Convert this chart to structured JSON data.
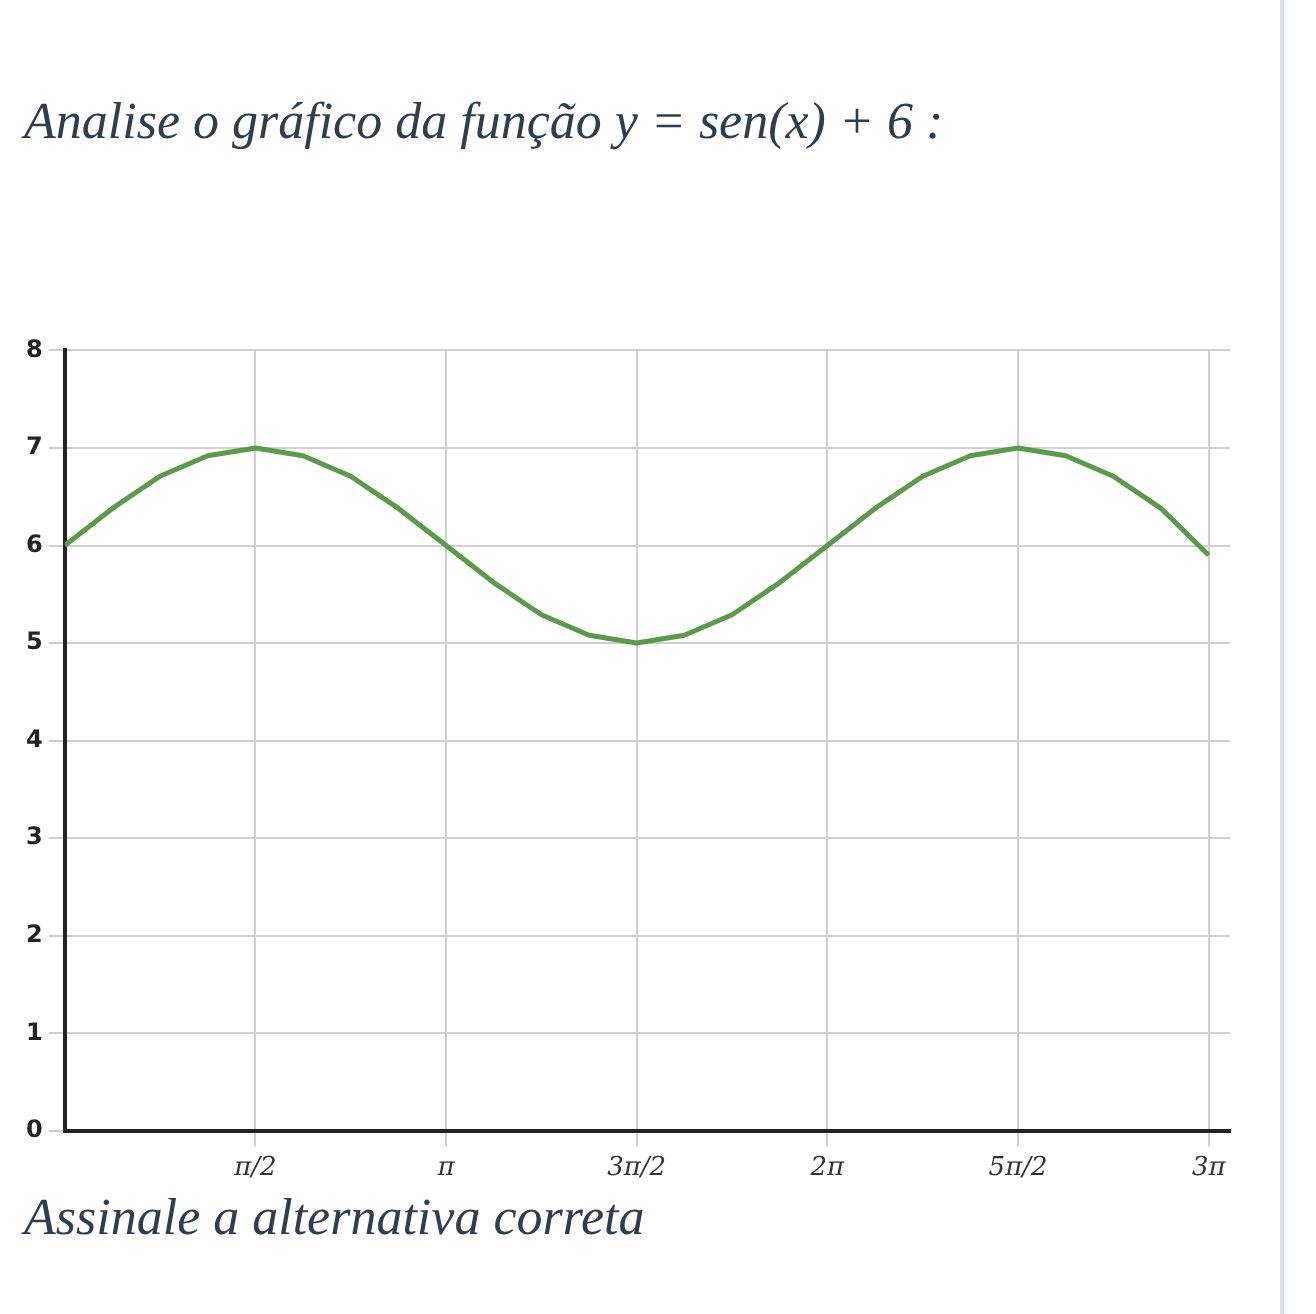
{
  "chart_data": {
    "type": "line",
    "title": "Analise o gráfico da função y = sen(x) + 6 :",
    "annotations": [
      "Assinale a alternativa correta"
    ],
    "x": [
      0,
      0.393,
      0.785,
      1.178,
      1.571,
      1.963,
      2.356,
      2.749,
      3.142,
      3.534,
      3.927,
      4.32,
      4.712,
      5.105,
      5.498,
      5.89,
      6.283,
      6.676,
      7.069,
      7.461,
      7.854,
      8.247,
      8.639,
      9.032,
      9.425
    ],
    "series": [
      {
        "color": "#5a9a4a",
        "values": [
          6,
          6.38,
          6.71,
          6.92,
          7,
          6.92,
          6.71,
          6.38,
          6,
          5.62,
          5.29,
          5.08,
          5,
          5.08,
          5.29,
          5.62,
          6,
          6.38,
          6.71,
          6.92,
          7,
          6.92,
          6.71,
          6.38,
          5.9
        ]
      }
    ],
    "xlim": [
      0,
      9.6
    ],
    "ylim": [
      0,
      8
    ],
    "xticks": [
      {
        "value": 1.571,
        "label": "π/2"
      },
      {
        "value": 3.142,
        "label": "π"
      },
      {
        "value": 4.712,
        "label": "3π/2"
      },
      {
        "value": 6.283,
        "label": "2π"
      },
      {
        "value": 7.854,
        "label": "5π/2"
      },
      {
        "value": 9.425,
        "label": "3π"
      }
    ],
    "yticks": [
      0,
      1,
      2,
      3,
      4,
      5,
      6,
      7,
      8
    ],
    "grid": true,
    "legend": false,
    "marker": "none",
    "line_style": "solid"
  }
}
